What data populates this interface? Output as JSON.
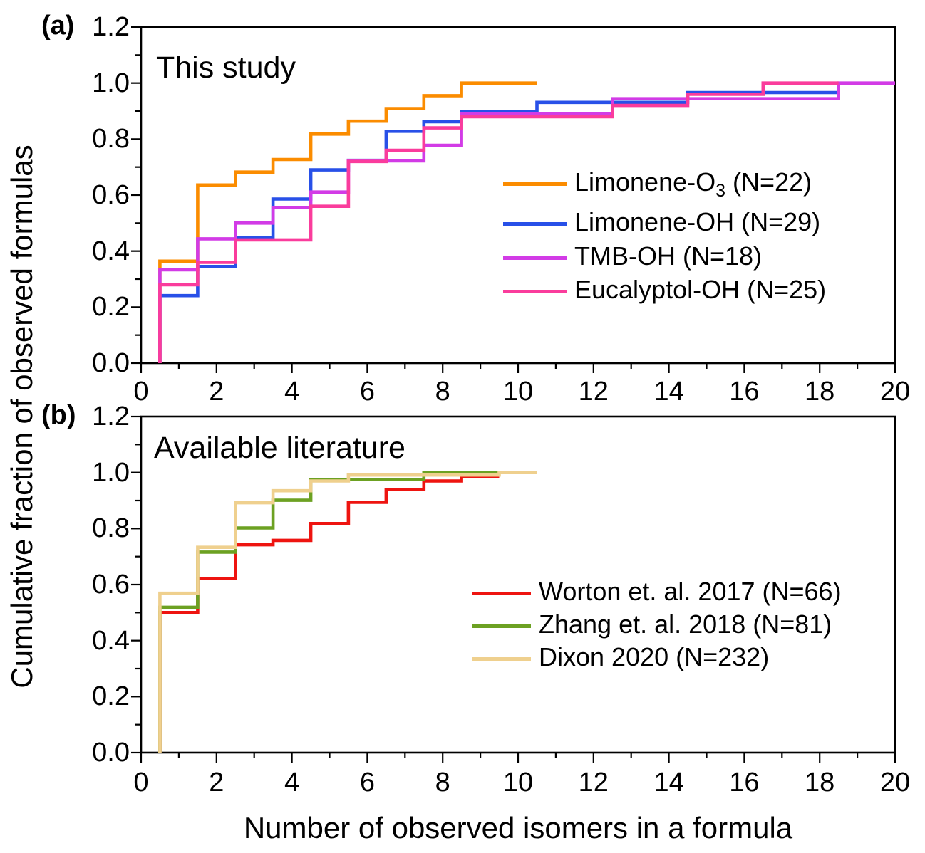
{
  "figure": {
    "y_axis_label": "Cumulative fraction of observed formulas",
    "x_axis_label": "Number of observed isomers in a formula",
    "panels": [
      {
        "id": "a",
        "label": "(a)",
        "title": "This study",
        "y_tick_labels": [
          "1.2",
          "1.0",
          "0.8",
          "0.6",
          "0.4",
          "0.2",
          "0.0"
        ],
        "x_tick_labels": [
          "0",
          "2",
          "4",
          "6",
          "8",
          "10",
          "12",
          "14",
          "16",
          "18",
          "20"
        ],
        "legend": [
          {
            "pre": "Limonene-O",
            "sub": "3",
            "post": " (N=22)",
            "color": "#FB8C00"
          },
          {
            "pre": "Limonene-OH (N=29)",
            "sub": "",
            "post": "",
            "color": "#2850E8"
          },
          {
            "pre": "TMB-OH (N=18)",
            "sub": "",
            "post": "",
            "color": "#D23BE6"
          },
          {
            "pre": "Eucalyptol-OH (N=25)",
            "sub": "",
            "post": "",
            "color": "#FA3C9C"
          }
        ]
      },
      {
        "id": "b",
        "label": "(b)",
        "title": "Available literature",
        "y_tick_labels": [
          "1.2",
          "1.0",
          "0.8",
          "0.6",
          "0.4",
          "0.2",
          "0.0"
        ],
        "x_tick_labels": [
          "0",
          "2",
          "4",
          "6",
          "8",
          "10",
          "12",
          "14",
          "16",
          "18",
          "20"
        ],
        "legend": [
          {
            "pre": "Worton et. al. 2017 (N=66)",
            "sub": "",
            "post": "",
            "color": "#EE1410"
          },
          {
            "pre": "Zhang et. al. 2018 (N=81)",
            "sub": "",
            "post": "",
            "color": "#6CA122"
          },
          {
            "pre": "Dixon 2020 (N=232)",
            "sub": "",
            "post": "",
            "color": "#EFD08E"
          }
        ]
      }
    ]
  },
  "chart_data": [
    {
      "type": "step",
      "panel": "a",
      "title": "This study",
      "xlabel": "Number of observed isomers in a formula",
      "ylabel": "Cumulative fraction of observed formulas",
      "xlim": [
        0,
        20
      ],
      "ylim": [
        0,
        1.2
      ],
      "x_major_ticks": [
        0,
        2,
        4,
        6,
        8,
        10,
        12,
        14,
        16,
        18,
        20
      ],
      "y_major_ticks": [
        0,
        0.2,
        0.4,
        0.6,
        0.8,
        1.0,
        1.2
      ],
      "grid": false,
      "legend_position": "center-right",
      "series": [
        {
          "name": "Limonene-O3 (N=22)",
          "color": "#FB8C00",
          "n": 22,
          "steps_x": [
            0.5,
            1.5,
            2.5,
            3.5,
            4.5,
            5.5,
            6.5,
            7.5,
            8.5
          ],
          "levels": [
            0.364,
            0.636,
            0.682,
            0.727,
            0.818,
            0.864,
            0.909,
            0.955,
            1.0
          ],
          "end_x": 10.5
        },
        {
          "name": "Limonene-OH (N=29)",
          "color": "#2850E8",
          "n": 29,
          "steps_x": [
            0.5,
            1.5,
            2.5,
            3.5,
            4.5,
            5.5,
            6.5,
            7.5,
            8.5,
            10.5,
            14.5
          ],
          "levels": [
            0.241,
            0.345,
            0.448,
            0.586,
            0.69,
            0.724,
            0.828,
            0.862,
            0.897,
            0.931,
            0.966
          ],
          "end_x": 18.5
        },
        {
          "name": "TMB-OH (N=18)",
          "color": "#D23BE6",
          "n": 18,
          "steps_x": [
            0.5,
            1.5,
            2.5,
            3.5,
            4.5,
            5.5,
            7.5,
            8.5,
            12.5,
            18.5
          ],
          "levels": [
            0.333,
            0.444,
            0.5,
            0.556,
            0.611,
            0.722,
            0.778,
            0.889,
            0.944,
            1.0
          ],
          "end_x": 20
        },
        {
          "name": "Eucalyptol-OH (N=25)",
          "color": "#FA3C9C",
          "n": 25,
          "steps_x": [
            0.5,
            1.5,
            2.5,
            4.5,
            5.5,
            6.5,
            7.5,
            8.5,
            12.5,
            14.5,
            16.5
          ],
          "levels": [
            0.28,
            0.36,
            0.44,
            0.56,
            0.72,
            0.76,
            0.84,
            0.88,
            0.92,
            0.96,
            1.0
          ],
          "end_x": 18.5
        }
      ]
    },
    {
      "type": "step",
      "panel": "b",
      "title": "Available literature",
      "xlabel": "Number of observed isomers in a formula",
      "ylabel": "Cumulative fraction of observed formulas",
      "xlim": [
        0,
        20
      ],
      "ylim": [
        0,
        1.2
      ],
      "x_major_ticks": [
        0,
        2,
        4,
        6,
        8,
        10,
        12,
        14,
        16,
        18,
        20
      ],
      "y_major_ticks": [
        0,
        0.2,
        0.4,
        0.6,
        0.8,
        1.0,
        1.2
      ],
      "grid": false,
      "legend_position": "center-right",
      "series": [
        {
          "name": "Worton et. al. 2017 (N=66)",
          "color": "#EE1410",
          "n": 66,
          "steps_x": [
            0.5,
            1.5,
            2.5,
            3.5,
            4.5,
            5.5,
            6.5,
            7.5,
            8.5
          ],
          "levels": [
            0.5,
            0.621,
            0.742,
            0.758,
            0.818,
            0.894,
            0.939,
            0.97,
            0.985
          ],
          "end_x": 9.5
        },
        {
          "name": "Zhang et. al. 2018 (N=81)",
          "color": "#6CA122",
          "n": 81,
          "steps_x": [
            0.5,
            1.5,
            2.5,
            3.5,
            4.5,
            7.5
          ],
          "levels": [
            0.519,
            0.716,
            0.802,
            0.901,
            0.975,
            1.0
          ],
          "end_x": 9.5
        },
        {
          "name": "Dixon 2020 (N=232)",
          "color": "#EFD08E",
          "n": 232,
          "steps_x": [
            0.5,
            1.5,
            2.5,
            3.5,
            4.5,
            5.5,
            9.5
          ],
          "levels": [
            0.569,
            0.733,
            0.892,
            0.935,
            0.97,
            0.991,
            1.0
          ],
          "end_x": 10.5
        }
      ]
    }
  ]
}
